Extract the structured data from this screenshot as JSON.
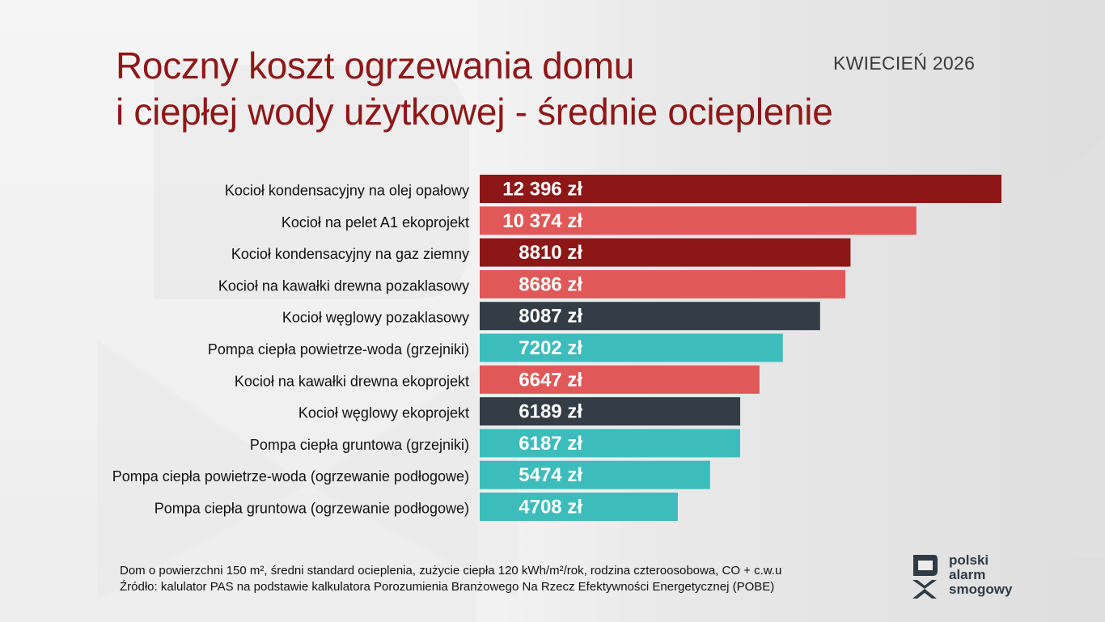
{
  "title_line1": "Roczny koszt ogrzewania domu",
  "title_line2": "i ciepłej wody użytkowej - średnie ocieplenie",
  "date": "KWIECIEŃ 2026",
  "notes": {
    "line1": "Dom o powierzchni 150 m², średni standard ocieplenia, zużycie ciepła 120 kWh/m²/rok, rodzina czteroosobowa, CO + c.w.u",
    "line2": "Źródło: kalulator PAS na podstawie kalkulatora Porozumienia Branżowego Na Rzecz Efektywności Energetycznej (POBE)"
  },
  "logo": {
    "line1": "polski",
    "line2": "alarm",
    "line3": "smogowy"
  },
  "colors": {
    "title": "#8f1717",
    "oil_gas": "#8d1717",
    "biomass": "#e05858",
    "coal": "#343d46",
    "heat_pump": "#3dbcbc"
  },
  "chart_data": {
    "type": "bar",
    "orientation": "horizontal",
    "categories": [
      "Kocioł kondensacyjny na olej opałowy",
      "Kocioł na pelet A1 ekoprojekt",
      "Kocioł kondensacyjny na gaz ziemny",
      "Kocioł na kawałki drewna pozaklasowy",
      "Kocioł węglowy pozaklasowy",
      "Pompa ciepła powietrze-woda (grzejniki)",
      "Kocioł na kawałki drewna ekoprojekt",
      "Kocioł węglowy ekoprojekt",
      "Pompa ciepła gruntowa (grzejniki)",
      "Pompa ciepła powietrze-woda (ogrzewanie podłogowe)",
      "Pompa ciepła gruntowa (ogrzewanie podłogowe)"
    ],
    "values": [
      12396,
      10374,
      8810,
      8686,
      8087,
      7202,
      6647,
      6189,
      6187,
      5474,
      4708
    ],
    "value_labels": [
      "12 396 zł",
      "10 374 zł",
      "8810 zł",
      "8686 zł",
      "8087 zł",
      "7202 zł",
      "6647 zł",
      "6189 zł",
      "6187 zł",
      "5474 zł",
      "4708 zł"
    ],
    "bar_colors": [
      "#8d1717",
      "#e05858",
      "#8d1717",
      "#e05858",
      "#343d46",
      "#3dbcbc",
      "#e05858",
      "#343d46",
      "#3dbcbc",
      "#3dbcbc",
      "#3dbcbc"
    ],
    "unit": "zł",
    "xlim": [
      0,
      12396
    ],
    "grid": false,
    "legend": false
  }
}
